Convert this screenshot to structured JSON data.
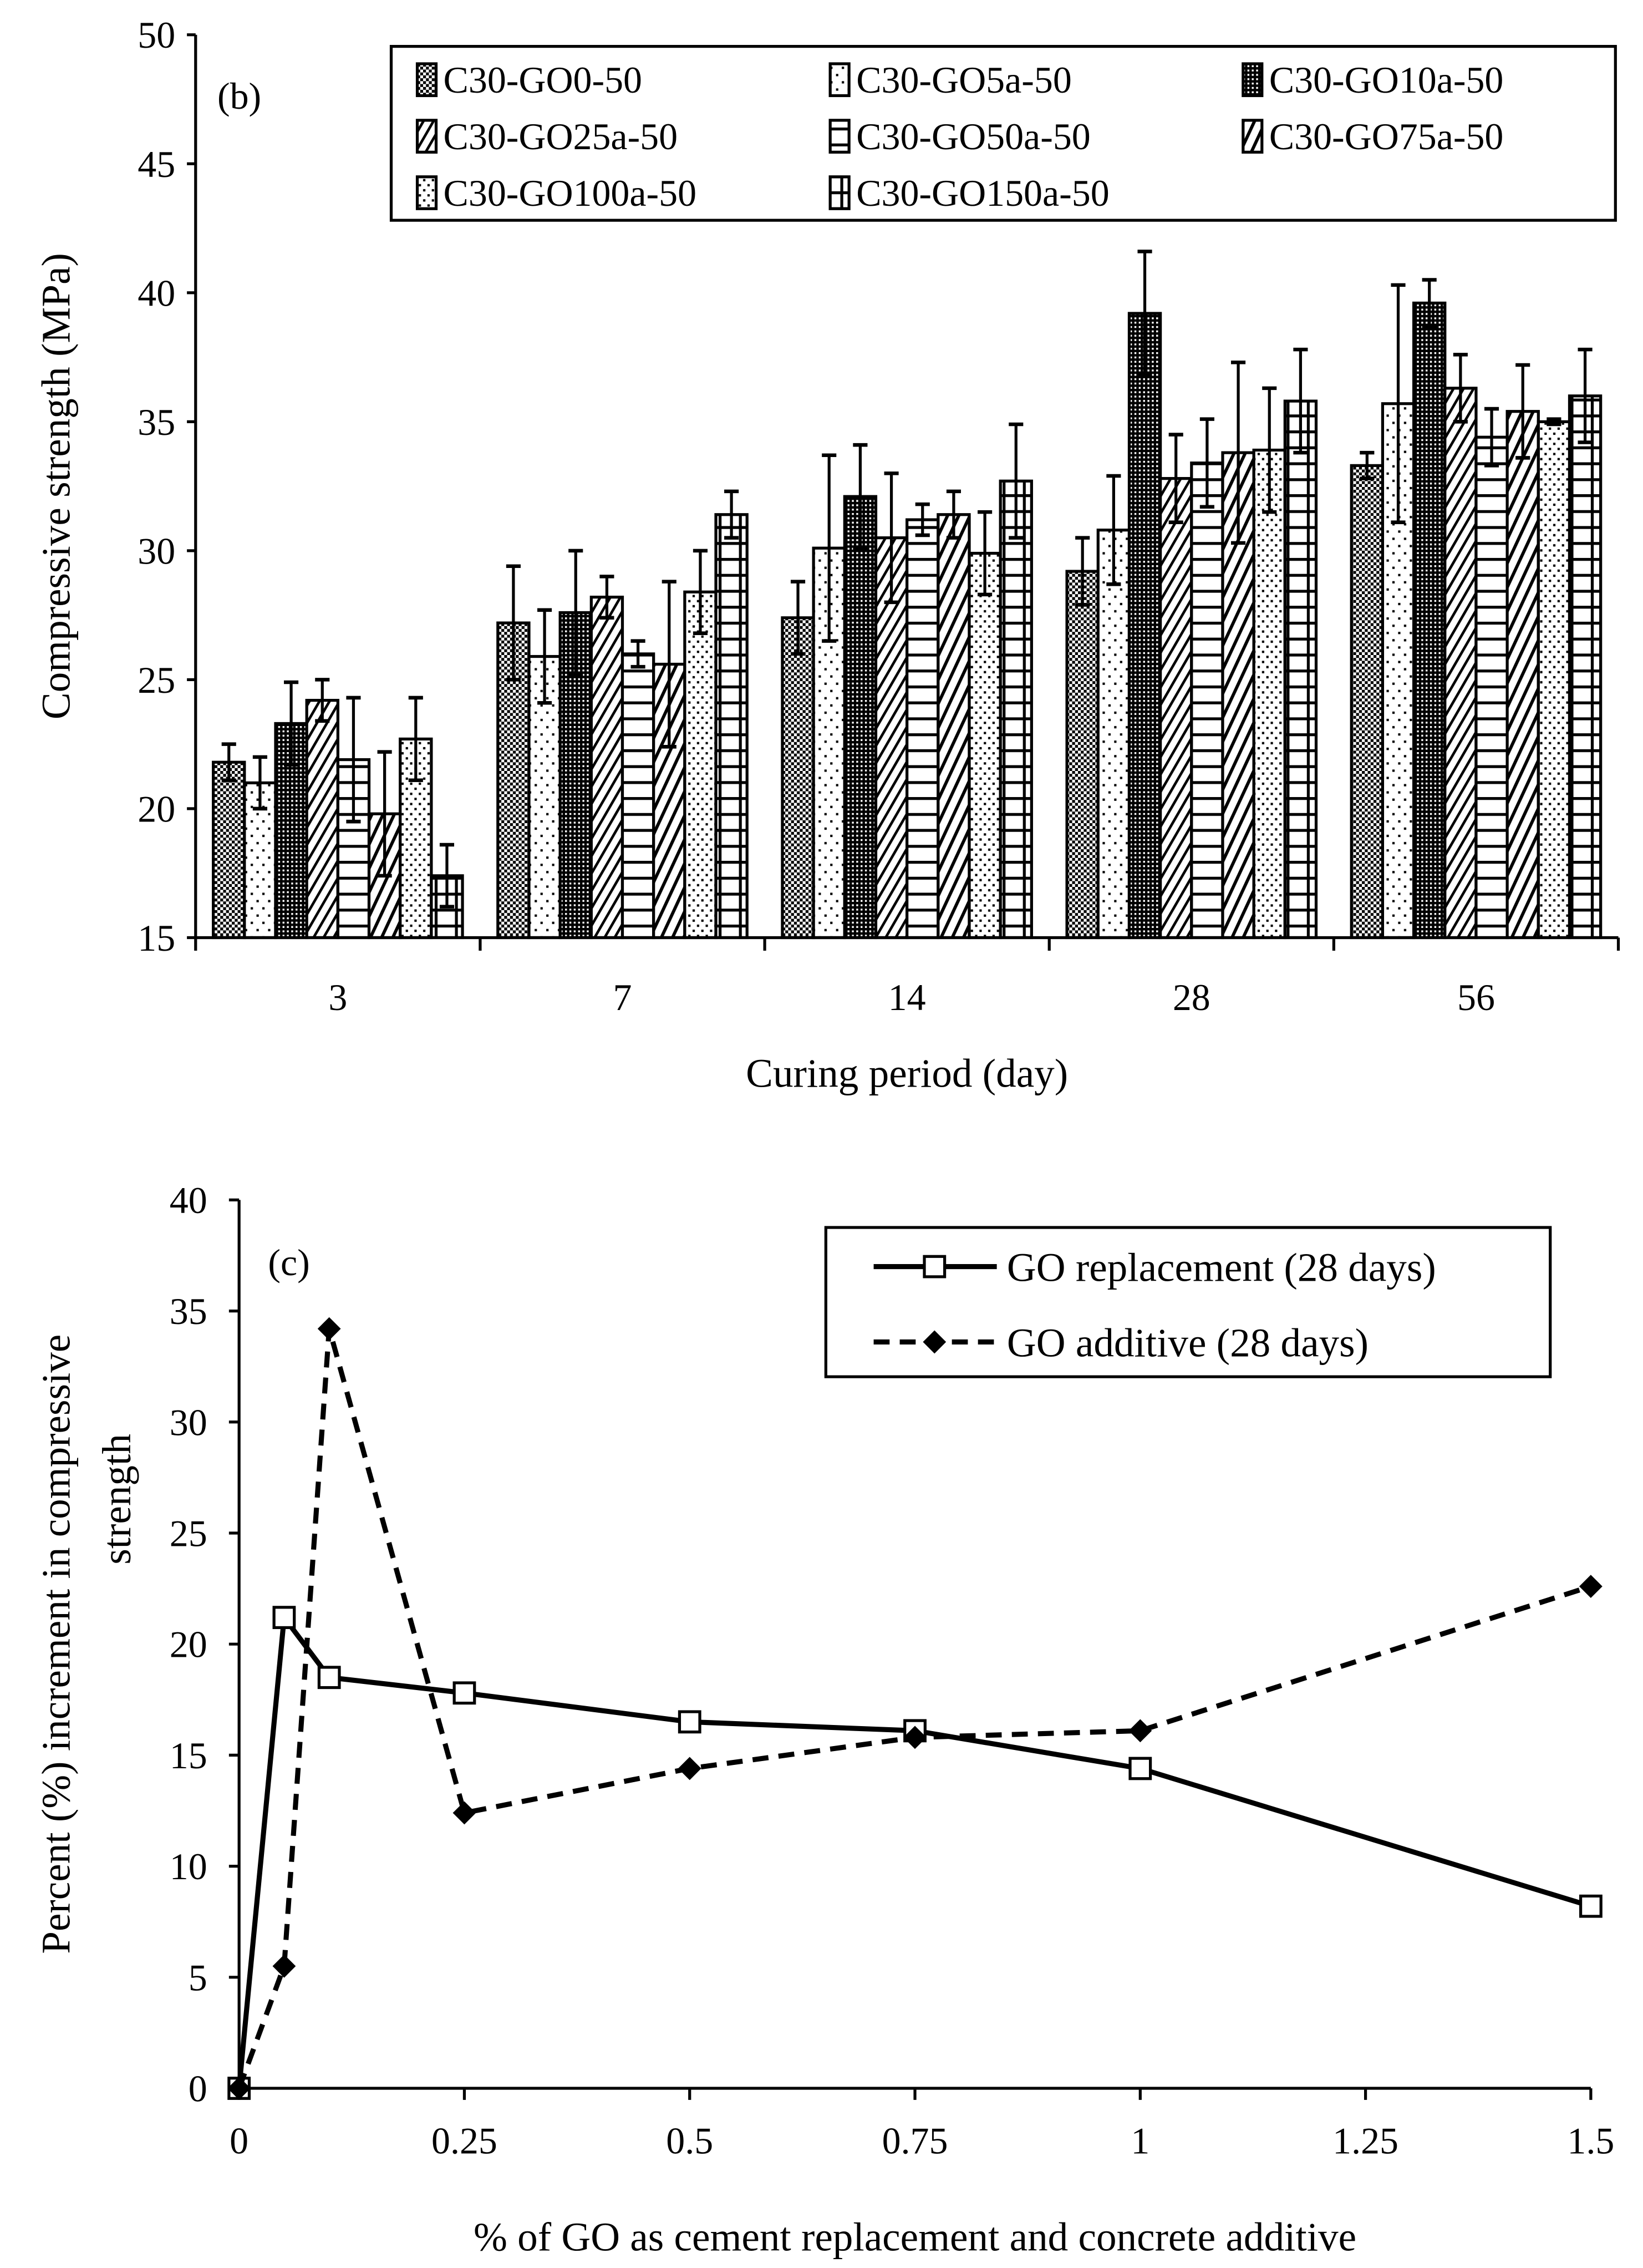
{
  "chart_data": [
    {
      "type": "bar",
      "panel_label": "(b)",
      "xlabel": "Curing period (day)",
      "ylabel": "Compressive strength (MPa)",
      "ylim": [
        15,
        50
      ],
      "yticks": [
        15,
        20,
        25,
        30,
        35,
        40,
        45,
        50
      ],
      "categories": [
        "3",
        "7",
        "14",
        "28",
        "56"
      ],
      "legend_placement": "top-right",
      "series": [
        {
          "name": "C30-GO0-50",
          "pattern": "checker",
          "values": [
            21.8,
            27.2,
            27.4,
            29.2,
            33.3
          ],
          "errors": [
            0.7,
            2.2,
            1.4,
            1.3,
            0.5
          ]
        },
        {
          "name": "C30-GO5a-50",
          "pattern": "sparse-dots",
          "values": [
            21.0,
            25.9,
            30.1,
            30.8,
            35.7
          ],
          "errors": [
            1.0,
            1.8,
            3.6,
            2.1,
            4.6
          ]
        },
        {
          "name": "C30-GO10a-50",
          "pattern": "dense-checker",
          "values": [
            23.3,
            27.6,
            32.1,
            39.2,
            39.6
          ],
          "errors": [
            1.6,
            2.4,
            2.0,
            2.4,
            0.9
          ]
        },
        {
          "name": "C30-GO25a-50",
          "pattern": "diagonal",
          "values": [
            24.2,
            28.2,
            30.5,
            32.8,
            36.3
          ],
          "errors": [
            0.8,
            0.8,
            2.5,
            1.7,
            1.3
          ]
        },
        {
          "name": "C30-GO50a-50",
          "pattern": "horizontal",
          "values": [
            21.9,
            26.0,
            31.2,
            33.4,
            34.4
          ],
          "errors": [
            2.4,
            0.5,
            0.6,
            1.7,
            1.1
          ]
        },
        {
          "name": "C30-GO75a-50",
          "pattern": "diagonal-wide",
          "values": [
            19.8,
            25.6,
            31.4,
            33.8,
            35.4
          ],
          "errors": [
            2.4,
            3.2,
            0.9,
            3.5,
            1.8
          ]
        },
        {
          "name": "C30-GO100a-50",
          "pattern": "dots",
          "values": [
            22.7,
            28.4,
            29.9,
            33.9,
            35.0
          ],
          "errors": [
            1.6,
            1.6,
            1.6,
            2.4,
            0.1
          ]
        },
        {
          "name": "C30-GO150a-50",
          "pattern": "brick",
          "values": [
            17.4,
            31.4,
            32.7,
            35.8,
            36.0
          ],
          "errors": [
            1.2,
            0.9,
            2.2,
            2.0,
            1.8
          ]
        }
      ]
    },
    {
      "type": "line",
      "panel_label": "(c)",
      "xlabel": "% of GO as cement replacement and concrete additive",
      "ylabel_line1": "Percent (%) increment in compressive",
      "ylabel_line2": "strength",
      "xlim": [
        0,
        1.5
      ],
      "ylim": [
        0,
        40
      ],
      "xticks": [
        "0",
        "0.25",
        "0.5",
        "0.75",
        "1",
        "1.25",
        "1.5"
      ],
      "xtick_values": [
        0,
        0.25,
        0.5,
        0.75,
        1,
        1.25,
        1.5
      ],
      "yticks": [
        0,
        5,
        10,
        15,
        20,
        25,
        30,
        35,
        40
      ],
      "legend_placement": "top-right",
      "series": [
        {
          "name": "GO replacement (28 days)",
          "style": "solid",
          "marker": "open-square",
          "x": [
            0,
            0.05,
            0.1,
            0.25,
            0.5,
            0.75,
            1,
            1.5
          ],
          "y": [
            0,
            21.2,
            18.5,
            17.8,
            16.5,
            16.1,
            14.4,
            8.2
          ]
        },
        {
          "name": "GO additive (28 days)",
          "style": "dashed",
          "marker": "filled-diamond",
          "x": [
            0,
            0.05,
            0.1,
            0.25,
            0.5,
            0.75,
            1,
            1.5
          ],
          "y": [
            0,
            5.5,
            34.2,
            12.4,
            14.4,
            15.8,
            16.1,
            22.6
          ]
        }
      ]
    }
  ]
}
